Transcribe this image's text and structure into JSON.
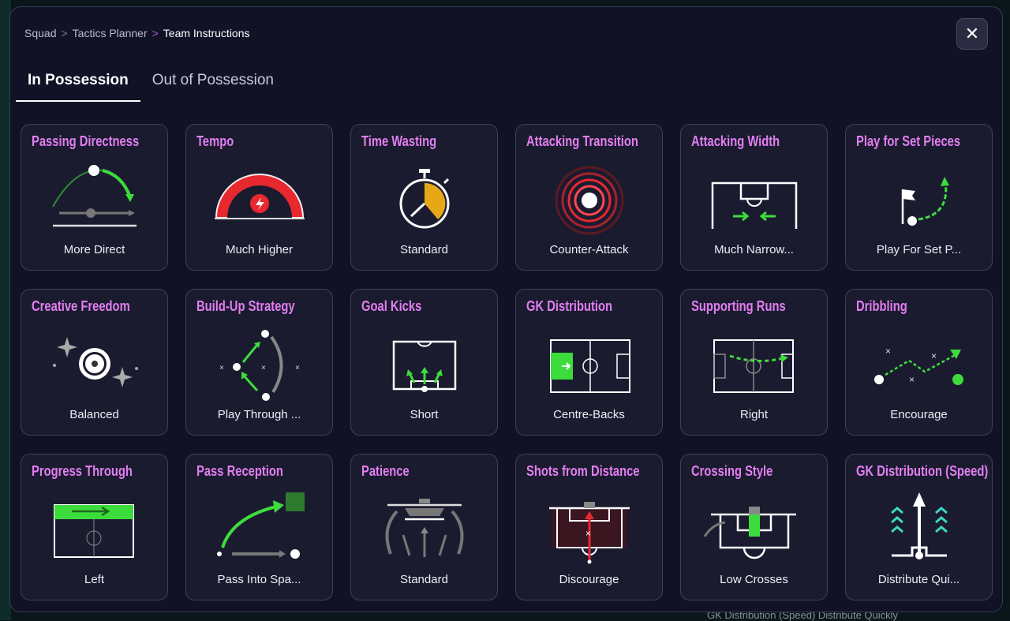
{
  "breadcrumb": [
    "Squad",
    "Tactics Planner",
    "Team Instructions"
  ],
  "tabs": [
    "In Possession",
    "Out of Possession"
  ],
  "close_icon": "close-icon",
  "background_text": "GK Distribution (Speed)  Distribute Quickly",
  "colors": {
    "title": "#e27ef0",
    "accent_green": "#3ddc3d",
    "accent_red": "#e8282f",
    "card_bg": "#1b1b30"
  },
  "cards": [
    {
      "title": "Passing Directness",
      "value": "More Direct",
      "icon": "passing-arc-icon"
    },
    {
      "title": "Tempo",
      "value": "Much Higher",
      "icon": "speed-gauge-icon"
    },
    {
      "title": "Time Wasting",
      "value": "Standard",
      "icon": "stopwatch-icon"
    },
    {
      "title": "Attacking Transition",
      "value": "Counter-Attack",
      "icon": "target-rings-icon"
    },
    {
      "title": "Attacking Width",
      "value": "Much Narrow...",
      "icon": "pitch-width-icon"
    },
    {
      "title": "Play for Set Pieces",
      "value": "Play For Set P...",
      "icon": "corner-flag-icon"
    },
    {
      "title": "Creative Freedom",
      "value": "Balanced",
      "icon": "sparkle-ball-icon"
    },
    {
      "title": "Build-Up Strategy",
      "value": "Play Through ...",
      "icon": "build-up-icon"
    },
    {
      "title": "Goal Kicks",
      "value": "Short",
      "icon": "goal-kick-icon"
    },
    {
      "title": "GK Distribution",
      "value": "Centre-Backs",
      "icon": "pitch-distribution-icon"
    },
    {
      "title": "Supporting Runs",
      "value": "Right",
      "icon": "supporting-runs-icon"
    },
    {
      "title": "Dribbling",
      "value": "Encourage",
      "icon": "dribbling-icon"
    },
    {
      "title": "Progress Through",
      "value": "Left",
      "icon": "pitch-progress-icon"
    },
    {
      "title": "Pass Reception",
      "value": "Pass Into Spa...",
      "icon": "pass-reception-icon"
    },
    {
      "title": "Patience",
      "value": "Standard",
      "icon": "patience-icon"
    },
    {
      "title": "Shots from Distance",
      "value": "Discourage",
      "icon": "shots-distance-icon"
    },
    {
      "title": "Crossing Style",
      "value": "Low Crosses",
      "icon": "crossing-icon"
    },
    {
      "title": "GK Distribution (Speed)",
      "value": "Distribute Qui...",
      "icon": "gk-speed-icon"
    }
  ]
}
